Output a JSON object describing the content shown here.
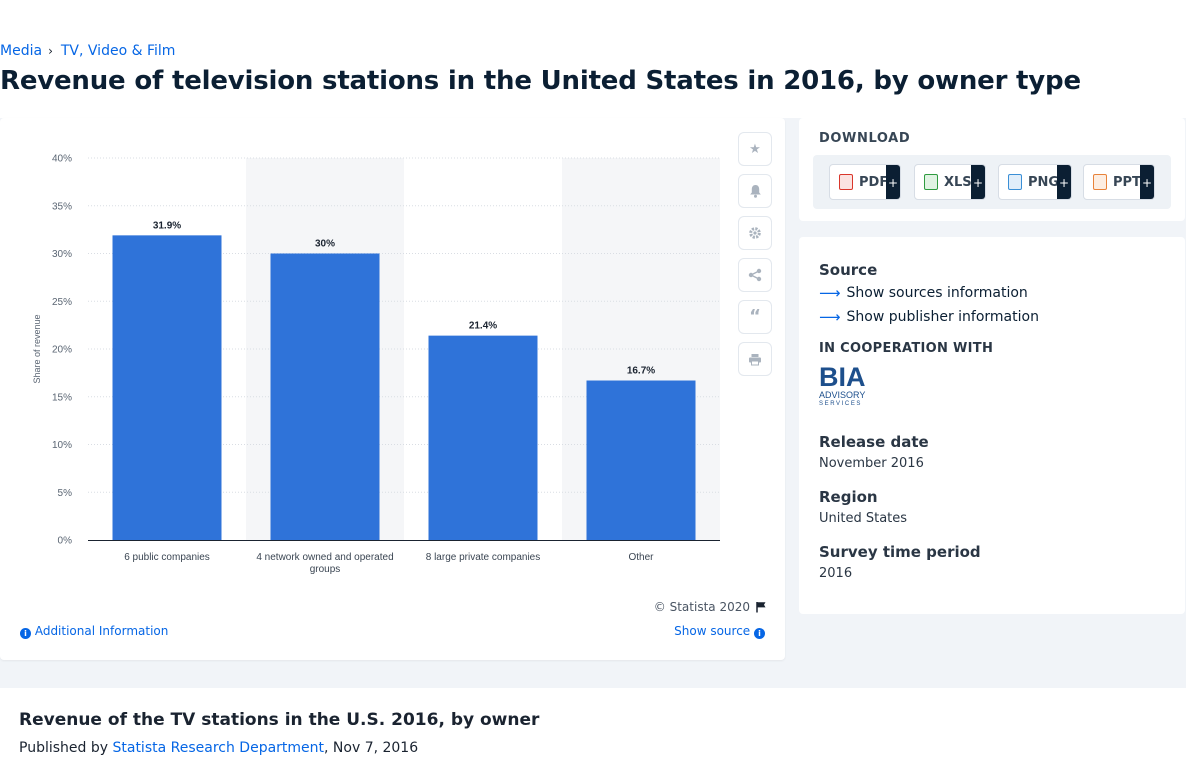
{
  "breadcrumb": {
    "items": [
      "Media",
      "TV, Video & Film"
    ]
  },
  "page_title": "Revenue of television stations in the United States in 2016, by owner type",
  "chart": {
    "footer": {
      "copyright": "© Statista 2020",
      "additional_info": "Additional Information",
      "show_source": "Show source"
    }
  },
  "chart_data": {
    "type": "bar",
    "categories": [
      "6 public companies",
      "4 network owned and operated groups",
      "8 large private companies",
      "Other"
    ],
    "category_lines": [
      [
        "6 public companies"
      ],
      [
        "4 network owned and operated",
        "groups"
      ],
      [
        "8 large private companies"
      ],
      [
        "Other"
      ]
    ],
    "values": [
      31.9,
      30,
      21.4,
      16.7
    ],
    "data_labels": [
      "31.9%",
      "30%",
      "21.4%",
      "16.7%"
    ],
    "title": "",
    "xlabel": "",
    "ylabel": "Share of revenue",
    "ylim": [
      0,
      40
    ],
    "yticks": [
      0,
      5,
      10,
      15,
      20,
      25,
      30,
      35,
      40
    ],
    "ytick_labels": [
      "0%",
      "5%",
      "10%",
      "15%",
      "20%",
      "25%",
      "30%",
      "35%",
      "40%"
    ],
    "grid": true,
    "bar_color": "#2f73d9",
    "band_color": "#f5f6f8"
  },
  "toolbar": {
    "icons": [
      "star-icon",
      "bell-icon",
      "gear-icon",
      "share-icon",
      "quote-icon",
      "print-icon"
    ]
  },
  "download": {
    "title": "DOWNLOAD",
    "buttons": [
      {
        "label": "PDF",
        "plus": "+",
        "color": "#d9362b"
      },
      {
        "label": "XLS",
        "plus": "+",
        "color": "#2e9b3f"
      },
      {
        "label": "PNG",
        "plus": "+",
        "color": "#3a8fd6"
      },
      {
        "label": "PPT",
        "plus": "+",
        "color": "#e8833a"
      }
    ]
  },
  "info": {
    "source_heading": "Source",
    "show_sources": "Show sources information",
    "show_publisher": "Show publisher information",
    "cooperation_heading": "IN COOPERATION WITH",
    "partner_logo": {
      "big": "BIA",
      "small": "ADVISORY",
      "tiny": "SERVICES"
    },
    "release_heading": "Release date",
    "release_value": "November 2016",
    "region_heading": "Region",
    "region_value": "United States",
    "survey_heading": "Survey time period",
    "survey_value": "2016"
  },
  "bottom": {
    "title": "Revenue of the TV stations in the U.S. 2016, by owner",
    "published_prefix": "Published by ",
    "publisher": "Statista Research Department",
    "date": ", Nov 7, 2016"
  }
}
